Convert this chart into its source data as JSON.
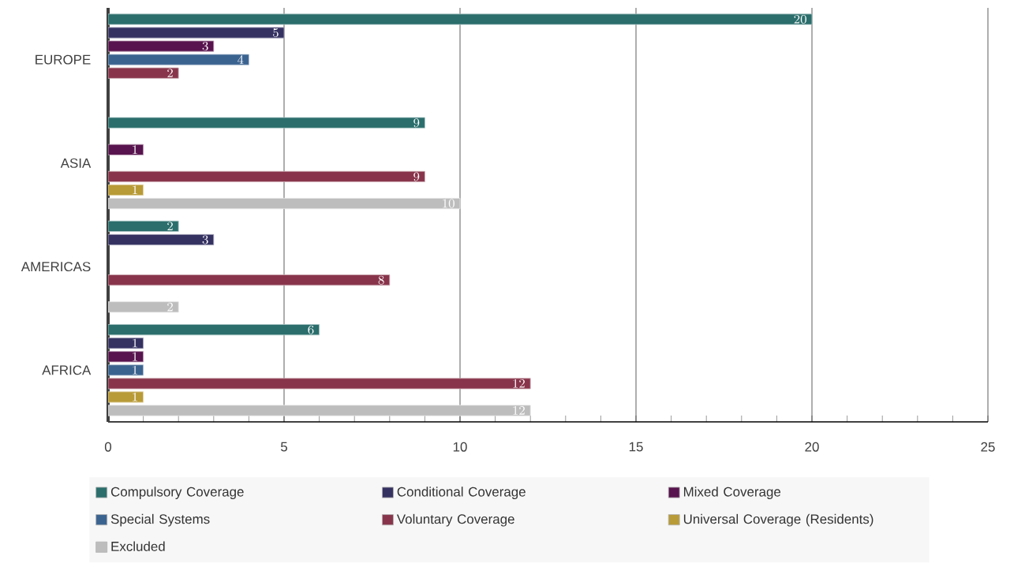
{
  "chart_data": {
    "type": "bar",
    "orientation": "horizontal",
    "categories": [
      "EUROPE",
      "ASIA",
      "AMERICAS",
      "AFRICA"
    ],
    "series": [
      {
        "name": "Compulsory Coverage",
        "color": "#2b6e6c",
        "values": [
          20,
          9,
          2,
          6
        ]
      },
      {
        "name": "Conditional Coverage",
        "color": "#353262",
        "values": [
          5,
          null,
          3,
          1
        ]
      },
      {
        "name": "Mixed Coverage",
        "color": "#58144e",
        "values": [
          3,
          1,
          null,
          1
        ]
      },
      {
        "name": "Special Systems",
        "color": "#3b6390",
        "values": [
          4,
          null,
          null,
          1
        ]
      },
      {
        "name": "Voluntary Coverage",
        "color": "#88354b",
        "values": [
          2,
          9,
          8,
          12
        ]
      },
      {
        "name": "Universal Coverage (Residents)",
        "color": "#b89a37",
        "values": [
          null,
          1,
          null,
          1
        ]
      },
      {
        "name": "Excluded",
        "color": "#bdbdbd",
        "values": [
          null,
          10,
          2,
          12
        ]
      }
    ],
    "xlim": [
      0,
      25
    ],
    "xticks": [
      0,
      5,
      10,
      15,
      20,
      25
    ],
    "grid": "x",
    "legend": "bottom",
    "data_labels": true
  }
}
